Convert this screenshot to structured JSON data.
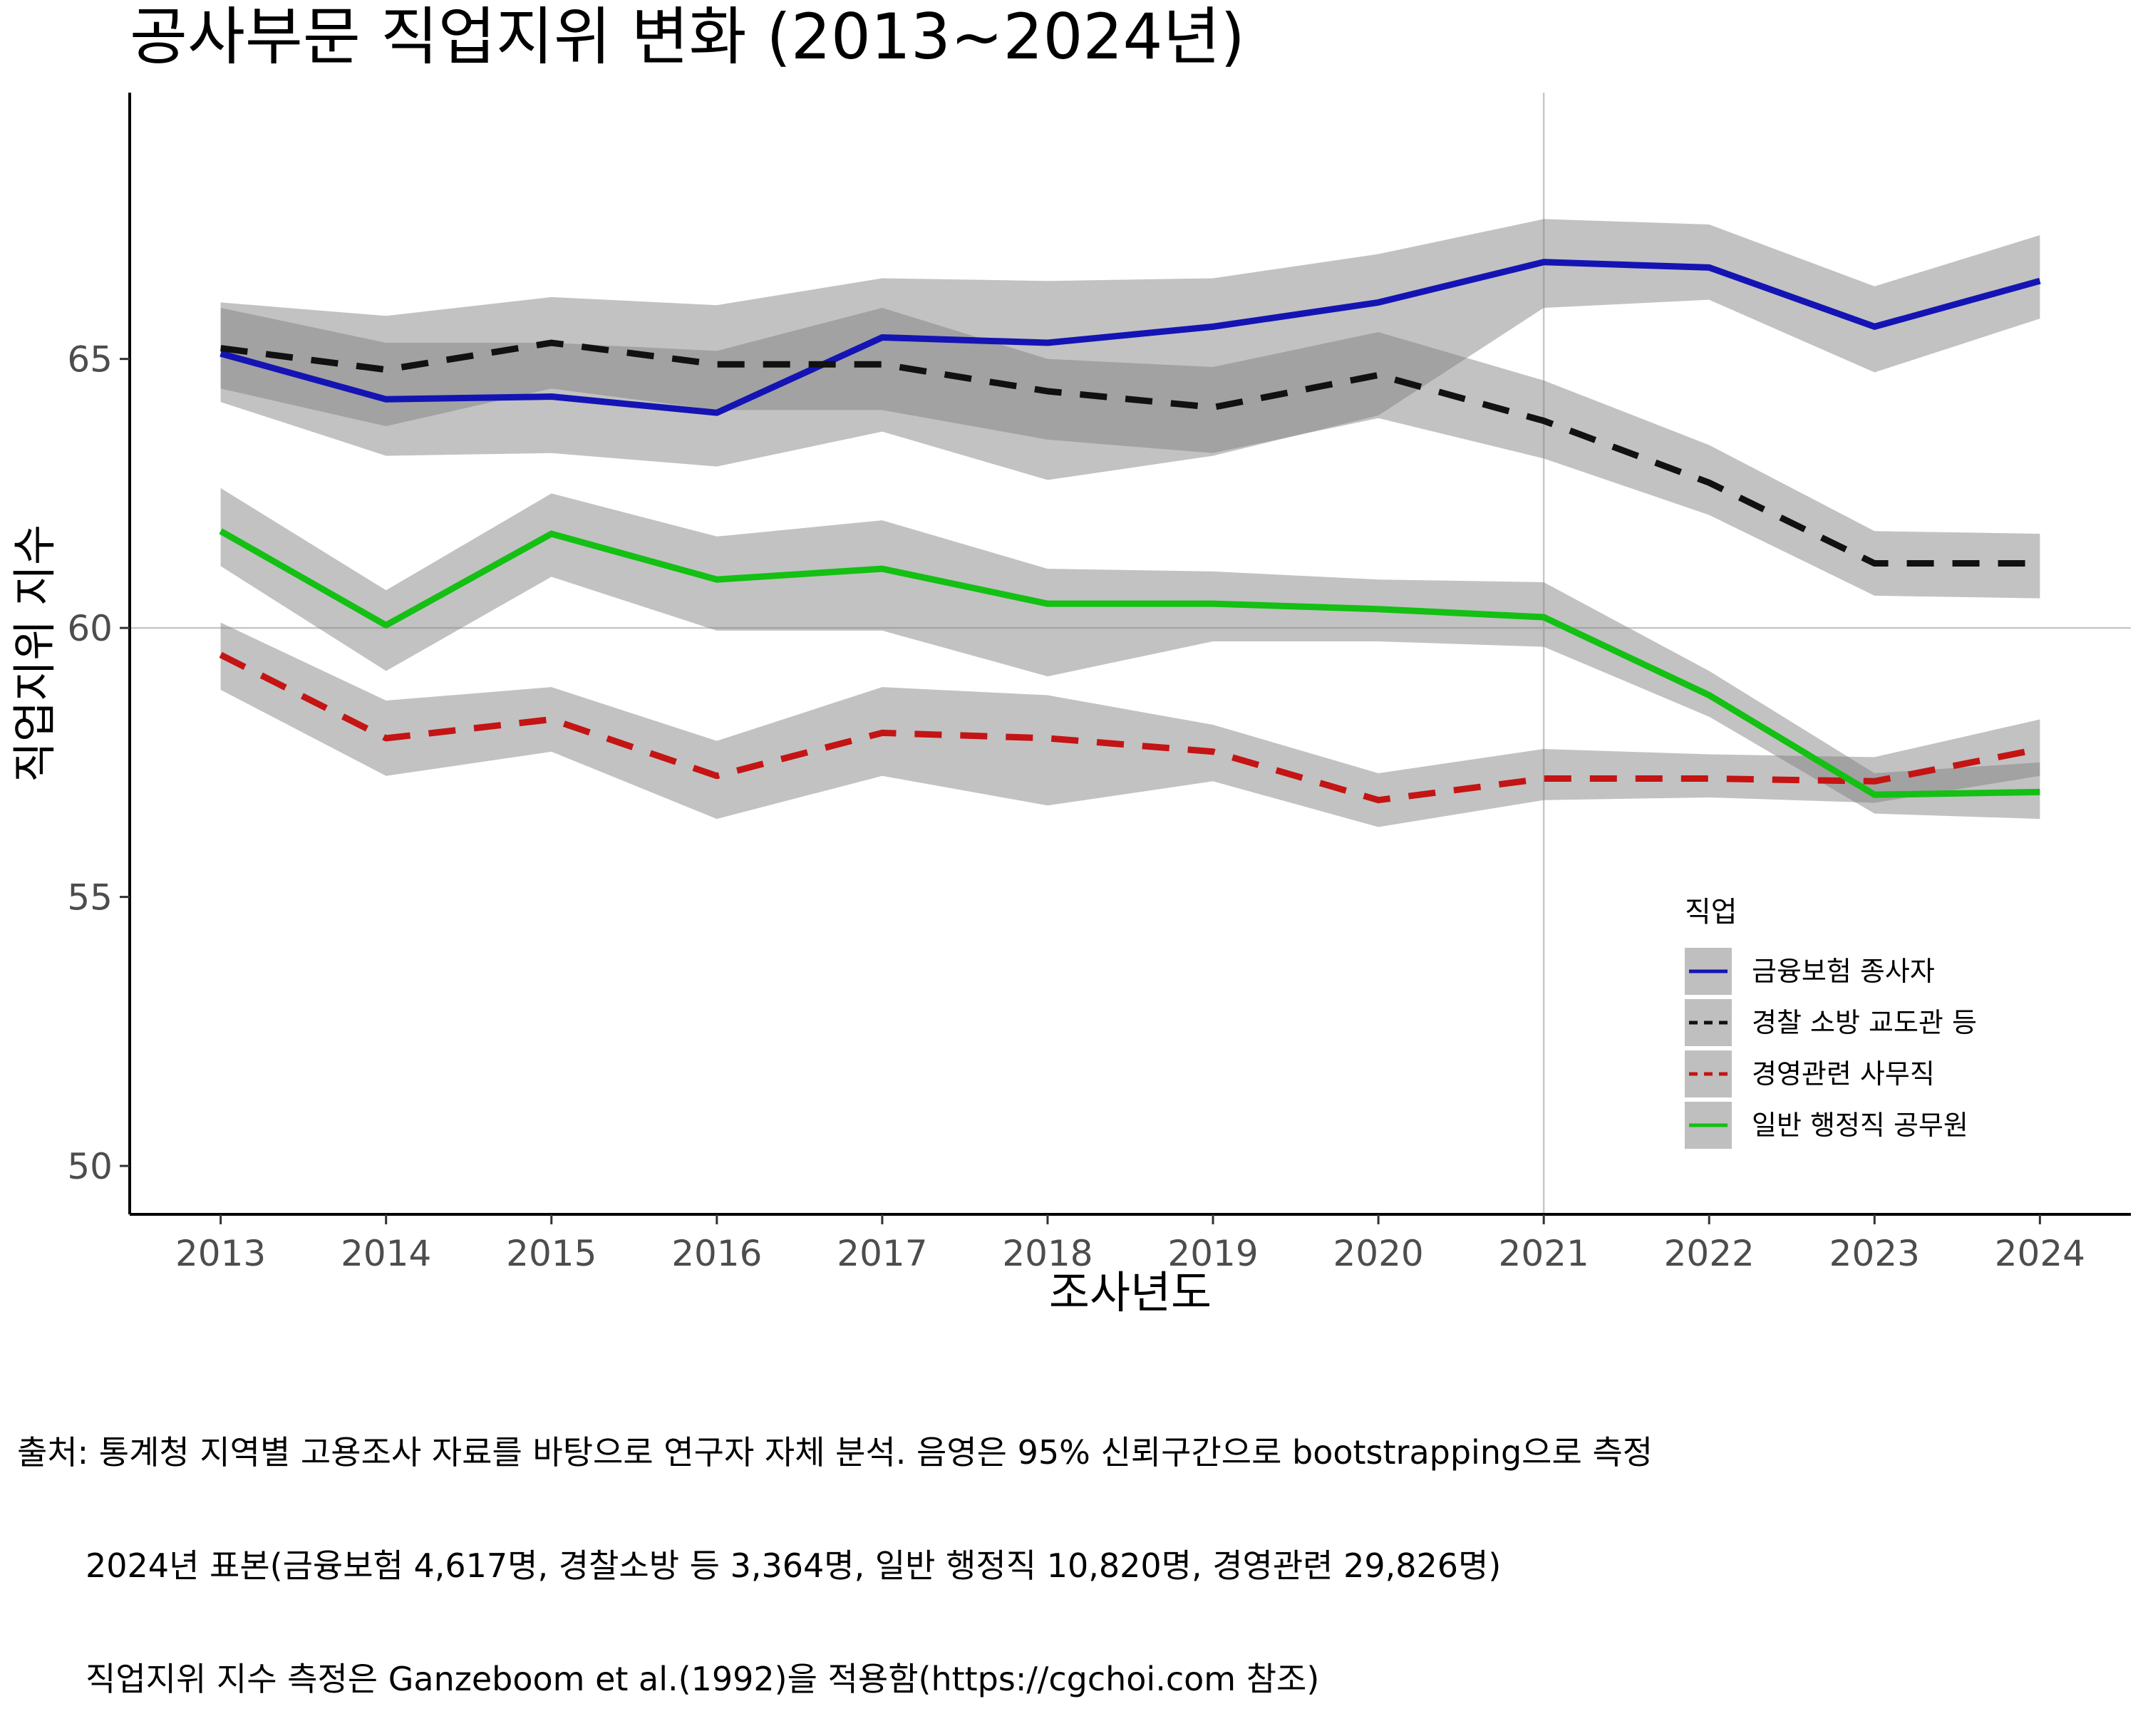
{
  "chart_data": {
    "type": "line",
    "title": "공사부문 직업지위 변화 (2013~2024년)",
    "xlabel": "조사년도",
    "ylabel": "직업지위 지수",
    "x": [
      2013,
      2014,
      2015,
      2016,
      2017,
      2018,
      2019,
      2020,
      2021,
      2022,
      2023,
      2024
    ],
    "xlim": [
      2012.45,
      2024.55
    ],
    "ylim": [
      49.1,
      69.95
    ],
    "y_ticks": [
      50,
      55,
      60,
      65
    ],
    "reference_lines": {
      "x": 2021,
      "y": 60
    },
    "grid": false,
    "legend": {
      "title": "직업",
      "position": "right-inside-bottom"
    },
    "series": [
      {
        "name": "금융보험 종사자",
        "color": "#1414b4",
        "dash": "solid",
        "values": [
          65.1,
          64.25,
          64.3,
          64.0,
          65.4,
          65.3,
          65.6,
          66.05,
          66.8,
          66.7,
          65.6,
          66.45
        ],
        "lower": [
          64.2,
          63.2,
          63.25,
          63.0,
          63.65,
          62.75,
          63.2,
          63.95,
          65.95,
          66.1,
          64.75,
          65.75
        ],
        "upper": [
          66.05,
          65.8,
          66.15,
          66.0,
          66.5,
          66.45,
          66.5,
          66.95,
          67.6,
          67.5,
          66.35,
          67.3
        ]
      },
      {
        "name": "경찰 소방 교도관 등",
        "color": "#111111",
        "dash": "dashed",
        "values": [
          65.2,
          64.8,
          65.3,
          64.9,
          64.9,
          64.4,
          64.1,
          64.7,
          63.85,
          62.7,
          61.2,
          61.2
        ],
        "lower": [
          64.45,
          63.75,
          64.45,
          64.05,
          64.05,
          63.5,
          63.25,
          63.9,
          63.15,
          62.1,
          60.6,
          60.55
        ],
        "upper": [
          65.95,
          65.3,
          65.3,
          65.15,
          65.95,
          65.0,
          64.85,
          65.5,
          64.6,
          63.4,
          61.8,
          61.75
        ]
      },
      {
        "name": "경영관련 사무직",
        "color": "#c41414",
        "dash": "dashed",
        "values": [
          59.5,
          57.95,
          58.3,
          57.25,
          58.05,
          57.95,
          57.7,
          56.8,
          57.2,
          57.2,
          57.15,
          57.75
        ],
        "lower": [
          58.85,
          57.25,
          57.7,
          56.45,
          57.25,
          56.7,
          57.15,
          56.3,
          56.8,
          56.85,
          56.75,
          57.25
        ],
        "upper": [
          60.1,
          58.65,
          58.9,
          57.9,
          58.9,
          58.75,
          58.2,
          57.3,
          57.75,
          57.65,
          57.6,
          58.3
        ]
      },
      {
        "name": "일반 행정직 공무원",
        "color": "#13c013",
        "dash": "solid",
        "values": [
          61.8,
          60.05,
          61.75,
          60.9,
          61.1,
          60.45,
          60.45,
          60.35,
          60.2,
          58.75,
          56.9,
          56.95
        ],
        "lower": [
          61.15,
          59.2,
          60.95,
          59.95,
          59.95,
          59.1,
          59.75,
          59.75,
          59.65,
          58.35,
          56.55,
          56.45
        ],
        "upper": [
          62.6,
          60.7,
          62.5,
          61.7,
          62.0,
          61.1,
          61.05,
          60.9,
          60.85,
          59.2,
          57.3,
          57.5
        ]
      }
    ]
  },
  "caption": {
    "line1": "출처: 통계청 지역별 고용조사 자료를 바탕으로 연구자 자체 분석. 음영은 95% 신뢰구간으로 bootstrapping으로 측정",
    "line2": "2024년 표본(금융보험 4,617명, 경찰소방 등 3,364명, 일반 행정직 10,820명, 경영관련 29,826명)",
    "line3": "직업지위 지수 측정은 Ganzeboom et al.(1992)을 적용함(https://cgchoi.com 참조)"
  }
}
